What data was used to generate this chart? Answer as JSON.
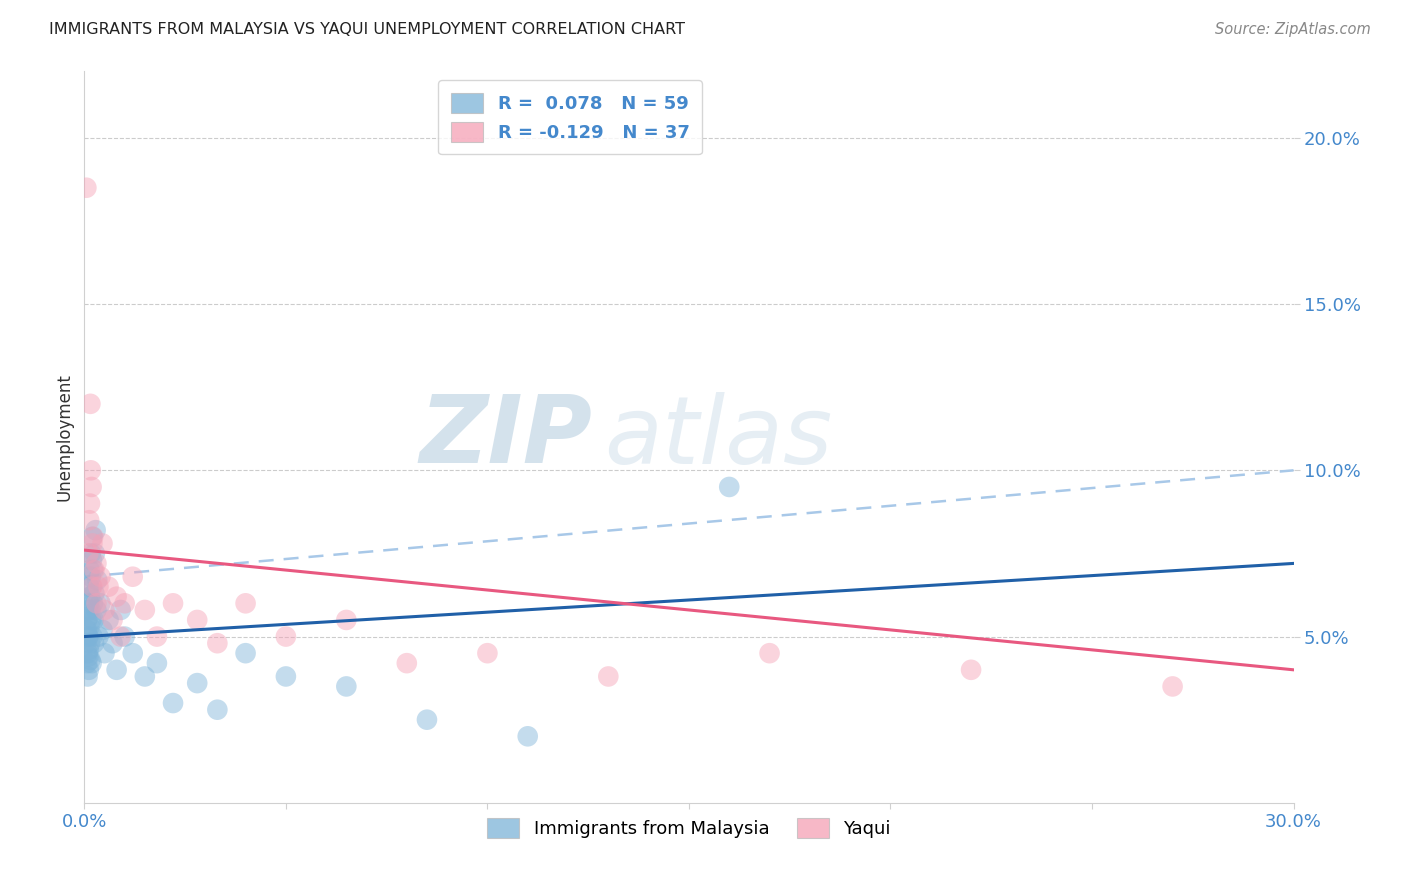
{
  "title": "IMMIGRANTS FROM MALAYSIA VS YAQUI UNEMPLOYMENT CORRELATION CHART",
  "source": "Source: ZipAtlas.com",
  "ylabel": "Unemployment",
  "watermark_zip": "ZIP",
  "watermark_atlas": "atlas",
  "legend_blue_r": "R =  0.078",
  "legend_blue_n": "N = 59",
  "legend_pink_r": "R = -0.129",
  "legend_pink_n": "N = 37",
  "legend_blue_label": "Immigrants from Malaysia",
  "legend_pink_label": "Yaqui",
  "blue_color": "#7db3d8",
  "pink_color": "#f5a0b5",
  "trendline_blue_color": "#2060a8",
  "trendline_pink_color": "#e85880",
  "trendline_dashed_color": "#a8c8e8",
  "x_min": 0.0,
  "x_max": 0.3,
  "y_min": 0.0,
  "y_max": 0.22,
  "yticks": [
    0.05,
    0.1,
    0.15,
    0.2
  ],
  "ytick_labels": [
    "5.0%",
    "10.0%",
    "15.0%",
    "20.0%"
  ],
  "blue_trend_start": 0.05,
  "blue_trend_end": 0.072,
  "pink_trend_start": 0.076,
  "pink_trend_end": 0.04,
  "dashed_trend_start": 0.068,
  "dashed_trend_end": 0.1,
  "blue_x": [
    0.0005,
    0.0006,
    0.0007,
    0.0007,
    0.0008,
    0.0008,
    0.0009,
    0.0009,
    0.001,
    0.001,
    0.001,
    0.0011,
    0.0011,
    0.0012,
    0.0012,
    0.0013,
    0.0013,
    0.0014,
    0.0014,
    0.0015,
    0.0015,
    0.0016,
    0.0016,
    0.0017,
    0.0018,
    0.0018,
    0.0019,
    0.002,
    0.002,
    0.0021,
    0.0022,
    0.0023,
    0.0024,
    0.0025,
    0.0026,
    0.0028,
    0.003,
    0.0032,
    0.0035,
    0.004,
    0.0045,
    0.005,
    0.006,
    0.007,
    0.008,
    0.009,
    0.01,
    0.012,
    0.015,
    0.018,
    0.022,
    0.028,
    0.033,
    0.04,
    0.05,
    0.065,
    0.085,
    0.11,
    0.16
  ],
  "blue_y": [
    0.048,
    0.052,
    0.042,
    0.055,
    0.038,
    0.045,
    0.05,
    0.058,
    0.044,
    0.05,
    0.056,
    0.04,
    0.046,
    0.06,
    0.065,
    0.053,
    0.07,
    0.048,
    0.062,
    0.043,
    0.058,
    0.068,
    0.075,
    0.055,
    0.042,
    0.065,
    0.073,
    0.08,
    0.05,
    0.06,
    0.07,
    0.055,
    0.048,
    0.063,
    0.075,
    0.082,
    0.058,
    0.067,
    0.05,
    0.06,
    0.052,
    0.045,
    0.055,
    0.048,
    0.04,
    0.058,
    0.05,
    0.045,
    0.038,
    0.042,
    0.03,
    0.036,
    0.028,
    0.045,
    0.038,
    0.035,
    0.025,
    0.02,
    0.095
  ],
  "pink_x": [
    0.0005,
    0.001,
    0.0012,
    0.0014,
    0.0015,
    0.0016,
    0.0018,
    0.002,
    0.002,
    0.0022,
    0.0025,
    0.003,
    0.003,
    0.0035,
    0.004,
    0.0045,
    0.005,
    0.006,
    0.007,
    0.008,
    0.009,
    0.01,
    0.012,
    0.015,
    0.018,
    0.022,
    0.028,
    0.033,
    0.04,
    0.05,
    0.065,
    0.08,
    0.1,
    0.13,
    0.17,
    0.22,
    0.27
  ],
  "pink_y": [
    0.185,
    0.075,
    0.085,
    0.09,
    0.12,
    0.1,
    0.095,
    0.065,
    0.078,
    0.08,
    0.07,
    0.06,
    0.072,
    0.065,
    0.068,
    0.078,
    0.058,
    0.065,
    0.055,
    0.062,
    0.05,
    0.06,
    0.068,
    0.058,
    0.05,
    0.06,
    0.055,
    0.048,
    0.06,
    0.05,
    0.055,
    0.042,
    0.045,
    0.038,
    0.045,
    0.04,
    0.035
  ]
}
